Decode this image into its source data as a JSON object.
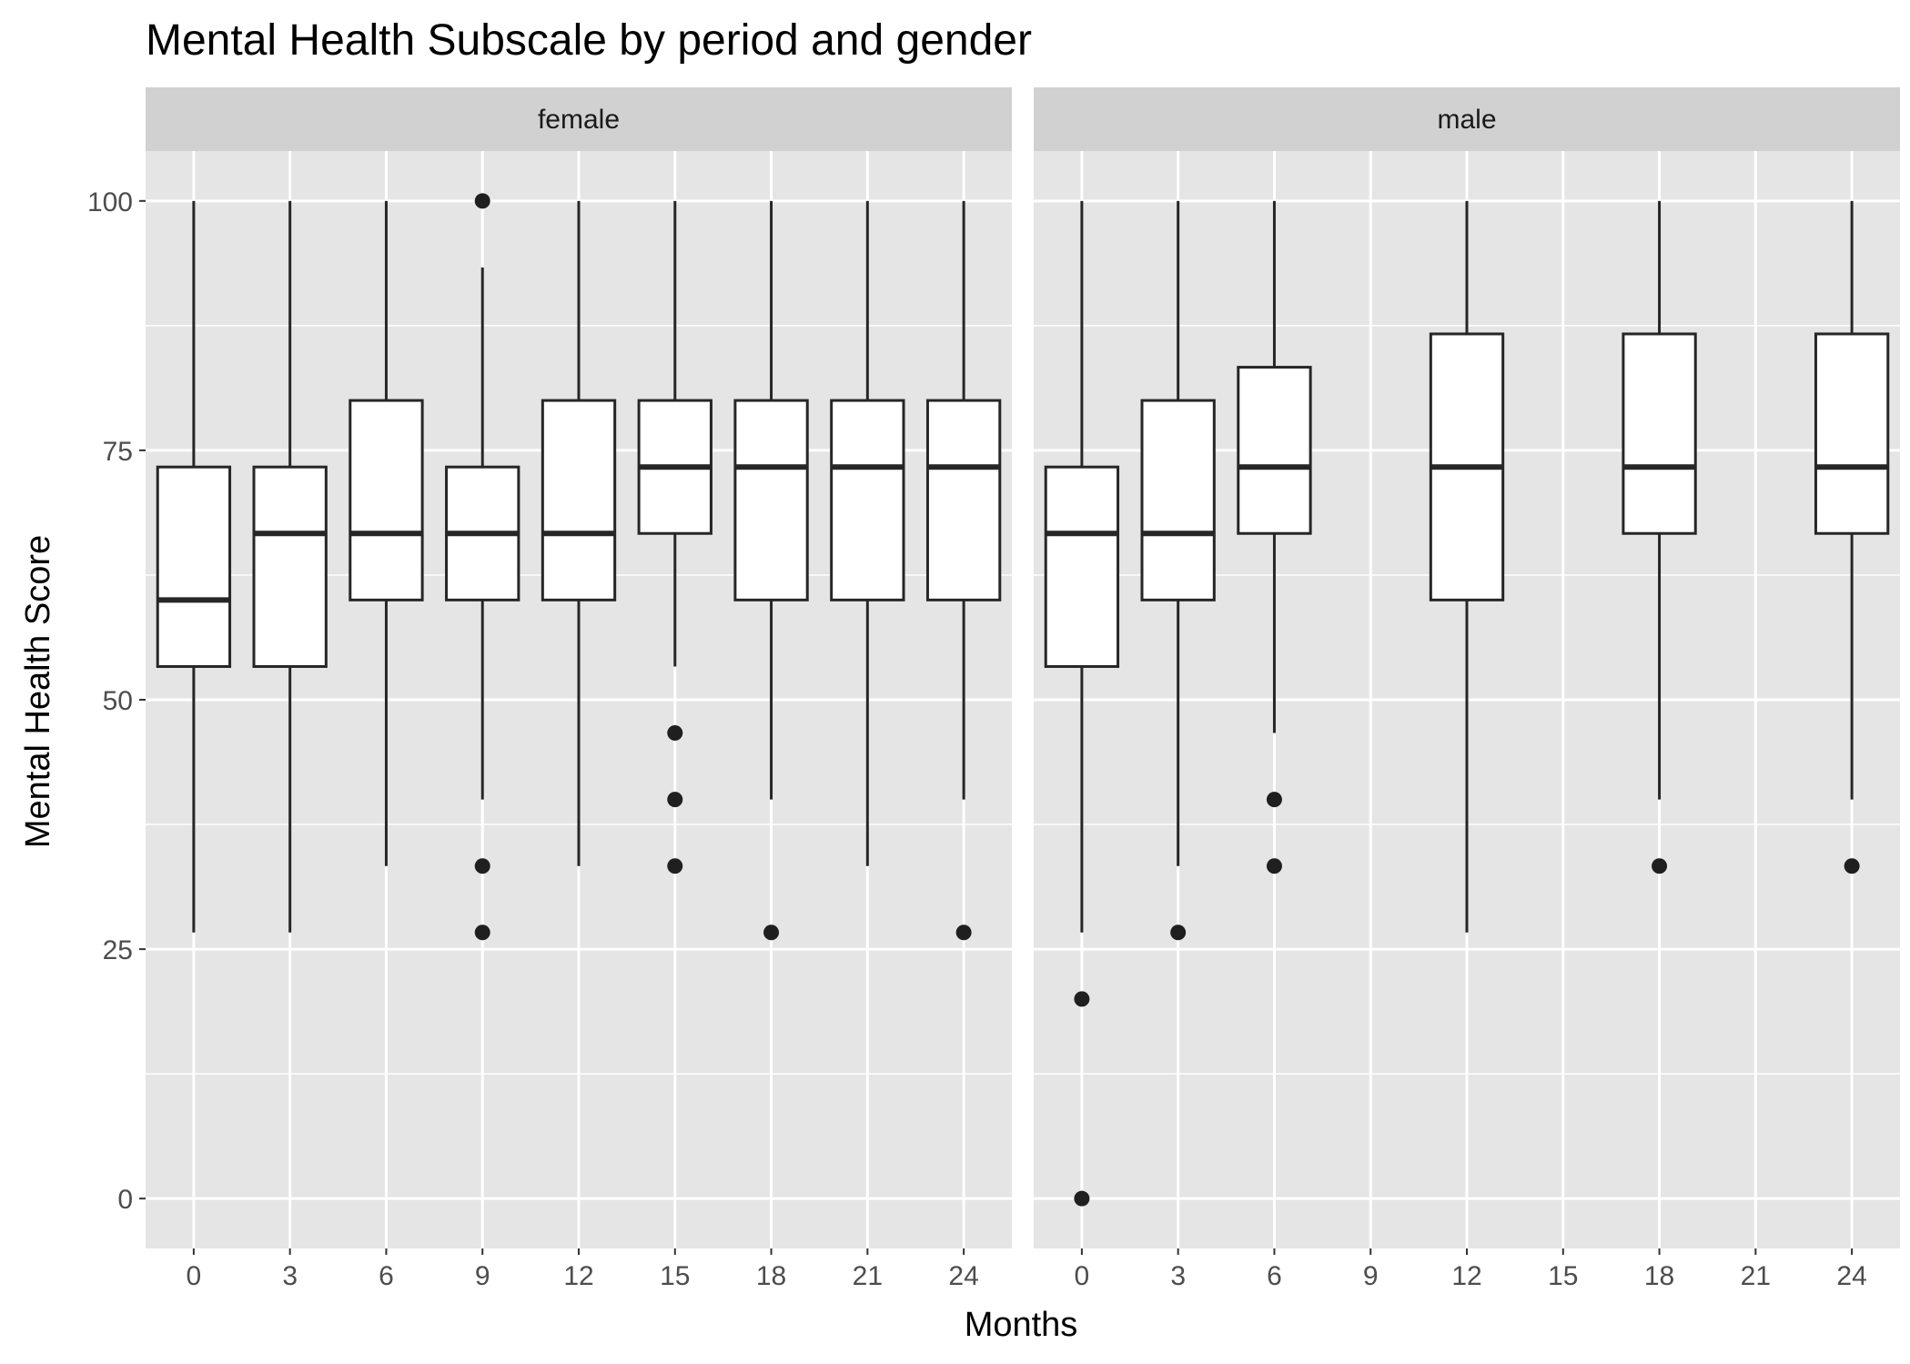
{
  "chart_data": {
    "type": "boxplot",
    "title": "Mental Health Subscale by period and gender",
    "xlabel": "Months",
    "ylabel": "Mental Health Score",
    "x_ticks": [
      "0",
      "3",
      "6",
      "9",
      "12",
      "15",
      "18",
      "21",
      "24"
    ],
    "y_ticks": [
      "0",
      "25",
      "50",
      "75",
      "100"
    ],
    "x_range": [
      -1.5,
      25.5
    ],
    "ylim": [
      -5,
      105
    ],
    "grid": true,
    "legend": "none",
    "panels": [
      {
        "label": "female",
        "boxes": [
          {
            "x": 0,
            "lower_whisker": 26.67,
            "q1": 53.33,
            "median": 60.0,
            "q3": 73.33,
            "upper_whisker": 100,
            "outliers": []
          },
          {
            "x": 3,
            "lower_whisker": 26.67,
            "q1": 53.33,
            "median": 66.67,
            "q3": 73.33,
            "upper_whisker": 100,
            "outliers": []
          },
          {
            "x": 6,
            "lower_whisker": 33.33,
            "q1": 60.0,
            "median": 66.67,
            "q3": 80.0,
            "upper_whisker": 100,
            "outliers": []
          },
          {
            "x": 9,
            "lower_whisker": 40.0,
            "q1": 60.0,
            "median": 66.67,
            "q3": 73.33,
            "upper_whisker": 93.33,
            "outliers": [
              100,
              33.33,
              26.67
            ]
          },
          {
            "x": 12,
            "lower_whisker": 33.33,
            "q1": 60.0,
            "median": 66.67,
            "q3": 80.0,
            "upper_whisker": 100,
            "outliers": []
          },
          {
            "x": 15,
            "lower_whisker": 53.33,
            "q1": 66.67,
            "median": 73.33,
            "q3": 80.0,
            "upper_whisker": 100,
            "outliers": [
              46.67,
              40.0,
              33.33
            ]
          },
          {
            "x": 18,
            "lower_whisker": 40.0,
            "q1": 60.0,
            "median": 73.33,
            "q3": 80.0,
            "upper_whisker": 100,
            "outliers": [
              26.67
            ]
          },
          {
            "x": 21,
            "lower_whisker": 33.33,
            "q1": 60.0,
            "median": 73.33,
            "q3": 80.0,
            "upper_whisker": 100,
            "outliers": []
          },
          {
            "x": 24,
            "lower_whisker": 40.0,
            "q1": 60.0,
            "median": 73.33,
            "q3": 80.0,
            "upper_whisker": 100,
            "outliers": [
              26.67
            ]
          }
        ]
      },
      {
        "label": "male",
        "boxes": [
          {
            "x": 0,
            "lower_whisker": 26.67,
            "q1": 53.33,
            "median": 66.67,
            "q3": 73.33,
            "upper_whisker": 100,
            "outliers": [
              20.0,
              0
            ]
          },
          {
            "x": 3,
            "lower_whisker": 33.33,
            "q1": 60.0,
            "median": 66.67,
            "q3": 80.0,
            "upper_whisker": 100,
            "outliers": [
              26.67
            ]
          },
          {
            "x": 6,
            "lower_whisker": 46.67,
            "q1": 66.67,
            "median": 73.33,
            "q3": 83.33,
            "upper_whisker": 100,
            "outliers": [
              40.0,
              33.33
            ]
          },
          {
            "x": 12,
            "lower_whisker": 26.67,
            "q1": 60.0,
            "median": 73.33,
            "q3": 86.67,
            "upper_whisker": 100,
            "outliers": []
          },
          {
            "x": 18,
            "lower_whisker": 40.0,
            "q1": 66.67,
            "median": 73.33,
            "q3": 86.67,
            "upper_whisker": 100,
            "outliers": [
              33.33
            ]
          },
          {
            "x": 24,
            "lower_whisker": 40.0,
            "q1": 66.67,
            "median": 73.33,
            "q3": 86.67,
            "upper_whisker": 100,
            "outliers": [
              33.33
            ]
          }
        ]
      }
    ]
  },
  "colors": {
    "panel_background": "#e5e5e5",
    "strip_background": "#d1d1d1",
    "grid": "#ffffff",
    "box_fill": "#ffffff",
    "box_stroke": "#262626",
    "outlier": "#1f1f1f",
    "tick_text": "#4d4d4d"
  }
}
